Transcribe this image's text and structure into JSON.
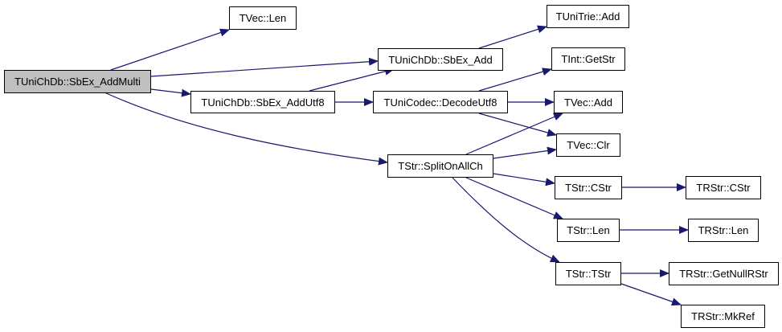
{
  "colors": {
    "edge": "#191970",
    "root_fill": "#bfbfbf",
    "node_fill": "#ffffff"
  },
  "nodes": [
    {
      "id": "root",
      "label": "TUniChDb::SbEx_AddMulti"
    },
    {
      "id": "tvec-len",
      "label": "TVec::Len"
    },
    {
      "id": "sbex-add",
      "label": "TUniChDb::SbEx_Add"
    },
    {
      "id": "unitrie-add",
      "label": "TUniTrie::Add"
    },
    {
      "id": "sbex-addutf8",
      "label": "TUniChDb::SbEx_AddUtf8"
    },
    {
      "id": "decodeutf8",
      "label": "TUniCodec::DecodeUtf8"
    },
    {
      "id": "tint-getstr",
      "label": "TInt::GetStr"
    },
    {
      "id": "tvec-add",
      "label": "TVec::Add"
    },
    {
      "id": "tvec-clr",
      "label": "TVec::Clr"
    },
    {
      "id": "splitonallch",
      "label": "TStr::SplitOnAllCh"
    },
    {
      "id": "tstr-cstr",
      "label": "TStr::CStr"
    },
    {
      "id": "trstr-cstr",
      "label": "TRStr::CStr"
    },
    {
      "id": "tstr-len",
      "label": "TStr::Len"
    },
    {
      "id": "trstr-len",
      "label": "TRStr::Len"
    },
    {
      "id": "tstr-tstr",
      "label": "TStr::TStr"
    },
    {
      "id": "trstr-getnullrstr",
      "label": "TRStr::GetNullRStr"
    },
    {
      "id": "trstr-mkref",
      "label": "TRStr::MkRef"
    }
  ],
  "edges": [
    [
      "root",
      "tvec-len"
    ],
    [
      "root",
      "sbex-add"
    ],
    [
      "root",
      "sbex-addutf8"
    ],
    [
      "root",
      "splitonallch"
    ],
    [
      "sbex-addutf8",
      "sbex-add"
    ],
    [
      "sbex-addutf8",
      "decodeutf8"
    ],
    [
      "sbex-add",
      "unitrie-add"
    ],
    [
      "decodeutf8",
      "tint-getstr"
    ],
    [
      "decodeutf8",
      "tvec-add"
    ],
    [
      "decodeutf8",
      "tvec-clr"
    ],
    [
      "splitonallch",
      "tvec-add"
    ],
    [
      "splitonallch",
      "tvec-clr"
    ],
    [
      "splitonallch",
      "tstr-cstr"
    ],
    [
      "splitonallch",
      "tstr-len"
    ],
    [
      "splitonallch",
      "tstr-tstr"
    ],
    [
      "tstr-cstr",
      "trstr-cstr"
    ],
    [
      "tstr-len",
      "trstr-len"
    ],
    [
      "tstr-tstr",
      "trstr-getnullrstr"
    ],
    [
      "tstr-tstr",
      "trstr-mkref"
    ]
  ]
}
